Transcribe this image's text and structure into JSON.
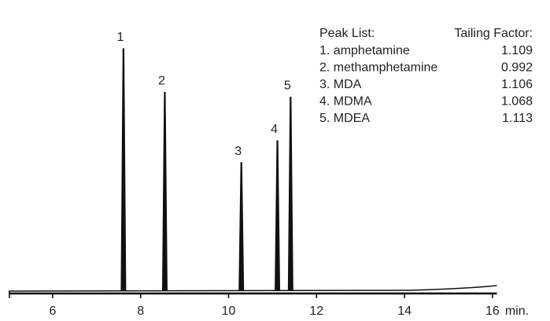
{
  "chart_data": {
    "type": "chromatogram",
    "peaks": {
      "labels": [
        "1",
        "2",
        "3",
        "4",
        "5"
      ],
      "x": [
        7.61,
        8.55,
        10.29,
        11.11,
        11.41
      ],
      "values": [
        100,
        82,
        53,
        62,
        80
      ]
    },
    "color": "#111111",
    "xlim": [
      5,
      16.1
    ],
    "xticks": [
      6,
      8,
      10,
      12,
      14,
      16
    ],
    "xlabel": "min.",
    "ylim": [
      0,
      110
    ]
  },
  "peak_list": {
    "title": "Peak List:",
    "factor_title": "Tailing Factor:",
    "items": [
      {
        "name": "1. amphetamine",
        "tailing_factor": 1.109
      },
      {
        "name": "2. methamphetamine",
        "tailing_factor": 0.992
      },
      {
        "name": "3. MDA",
        "tailing_factor": 1.106
      },
      {
        "name": "4. MDMA",
        "tailing_factor": 1.068
      },
      {
        "name": "5. MDEA",
        "tailing_factor": 1.113
      }
    ]
  }
}
